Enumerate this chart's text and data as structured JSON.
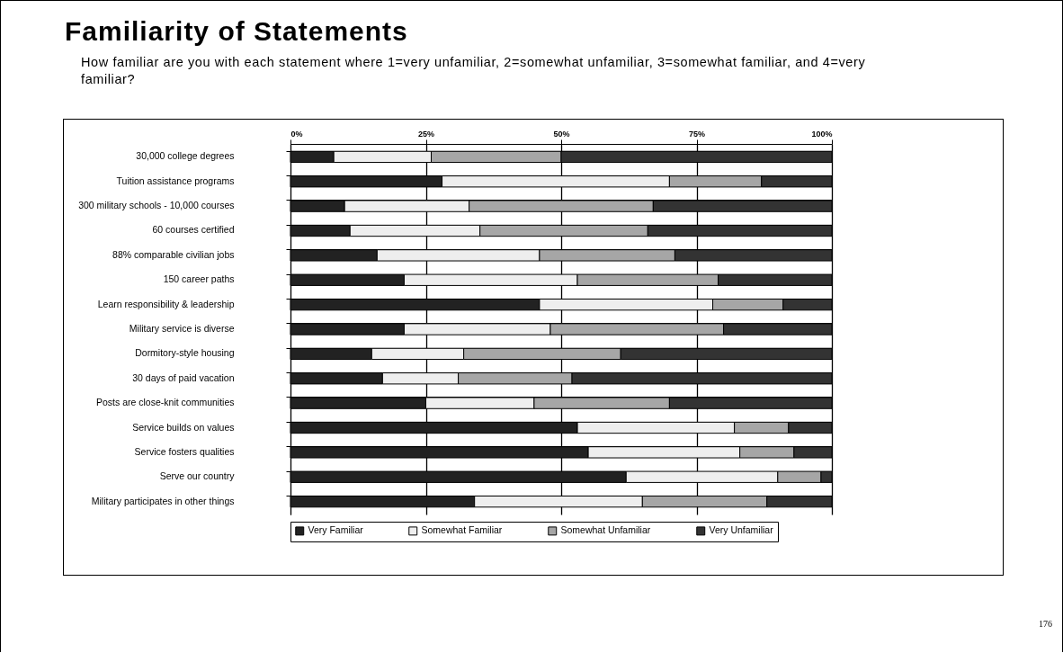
{
  "chart_data": {
    "type": "bar",
    "orientation": "horizontal",
    "stacked": true,
    "title": "Familiarity of Statements",
    "subtitle": "How familiar are you with each statement where 1=very unfamiliar, 2=somewhat unfamiliar, 3=somewhat familiar, and 4=very familiar?",
    "categories": [
      "30,000 college degrees",
      "Tuition assistance programs",
      "300 military schools - 10,000 courses",
      "60 courses certified",
      "88% comparable civilian jobs",
      "150 career paths",
      "Learn responsibility & leadership",
      "Military service is diverse",
      "Dormitory-style housing",
      "30 days of paid vacation",
      "Posts are close-knit communities",
      "Service builds on values",
      "Service fosters qualities",
      "Serve our country",
      "Military participates in other things"
    ],
    "series": [
      {
        "name": "Very Familiar",
        "color": "#222222",
        "values": [
          8,
          28,
          10,
          11,
          16,
          21,
          46,
          21,
          15,
          17,
          25,
          53,
          55,
          62,
          34
        ]
      },
      {
        "name": "Somewhat Familiar",
        "color": "#eeeeee",
        "values": [
          18,
          42,
          23,
          24,
          30,
          32,
          32,
          27,
          17,
          14,
          20,
          29,
          28,
          28,
          31
        ]
      },
      {
        "name": "Somewhat Unfamiliar",
        "color": "#a6a6a6",
        "values": [
          24,
          17,
          34,
          31,
          25,
          26,
          13,
          32,
          29,
          21,
          25,
          10,
          10,
          8,
          23
        ]
      },
      {
        "name": "Very Unfamiliar",
        "color": "#333333",
        "values": [
          50,
          13,
          33,
          34,
          29,
          21,
          9,
          20,
          39,
          48,
          30,
          8,
          7,
          2,
          12
        ]
      }
    ],
    "xlim": [
      0,
      100
    ],
    "xticks": [
      {
        "value": 0,
        "label": "0%"
      },
      {
        "value": 25,
        "label": "25%"
      },
      {
        "value": 50,
        "label": "50%"
      },
      {
        "value": 75,
        "label": "75%"
      },
      {
        "value": 100,
        "label": "100%"
      }
    ],
    "grid": true,
    "legend": "bottom",
    "annotations": [
      "176"
    ]
  }
}
